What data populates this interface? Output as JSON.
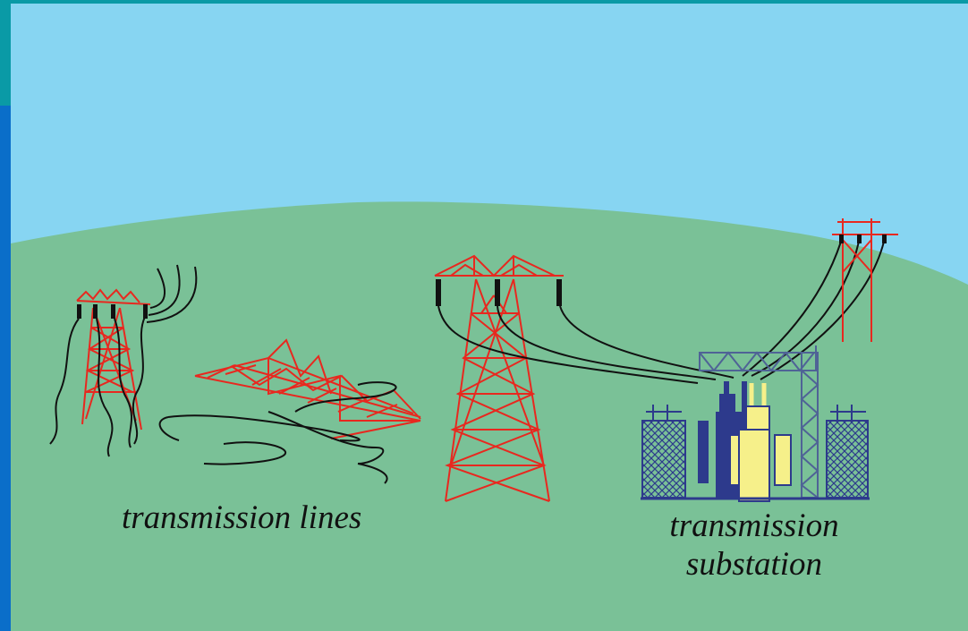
{
  "labels": {
    "transmission_lines": "transmission lines",
    "transmission_substation_line1": "transmission",
    "transmission_substation_line2": "substation"
  },
  "colors": {
    "frame_teal": "#0a9aa6",
    "frame_blue": "#0a6ec9",
    "sky": "#87d5f2",
    "ground": "#7ac197",
    "tower_red": "#e8281f",
    "wire_black": "#111111",
    "substation_navy": "#2d3a8c",
    "transformer_yellow": "#f6f08a",
    "structure_slate": "#4f6396"
  }
}
